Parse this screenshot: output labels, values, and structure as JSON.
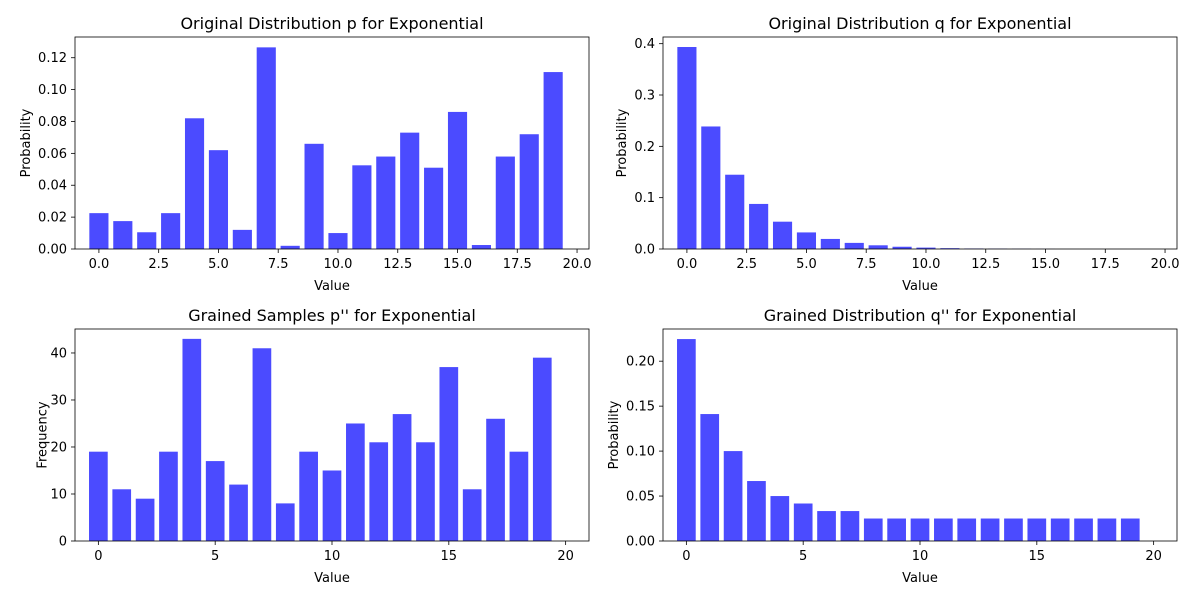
{
  "chart_data": [
    {
      "type": "bar",
      "title": "Original Distribution p for Exponential",
      "xlabel": "Value",
      "ylabel": "Probability",
      "xlim": [
        -1.0,
        20.5
      ],
      "ylim": [
        0,
        0.133
      ],
      "xticks": [
        0.0,
        2.5,
        5.0,
        7.5,
        10.0,
        12.5,
        15.0,
        17.5,
        20.0
      ],
      "xtick_labels": [
        "0.0",
        "2.5",
        "5.0",
        "7.5",
        "10.0",
        "12.5",
        "15.0",
        "17.5",
        "20.0"
      ],
      "yticks": [
        0,
        0.02,
        0.04,
        0.06,
        0.08,
        0.1,
        0.12
      ],
      "ytick_labels": [
        "0.00",
        "0.02",
        "0.04",
        "0.06",
        "0.08",
        "0.10",
        "0.12"
      ],
      "grid": false,
      "bar_color": "#4b4bff",
      "x": [
        0,
        1,
        2,
        3,
        4,
        5,
        6,
        7,
        8,
        9,
        10,
        11,
        12,
        13,
        14,
        15,
        16,
        17,
        18,
        19
      ],
      "values": [
        0.0225,
        0.0175,
        0.0105,
        0.0225,
        0.082,
        0.062,
        0.012,
        0.1265,
        0.002,
        0.066,
        0.01,
        0.0525,
        0.058,
        0.073,
        0.051,
        0.086,
        0.0025,
        0.058,
        0.072,
        0.111
      ]
    },
    {
      "type": "bar",
      "title": "Original Distribution q for Exponential",
      "xlabel": "Value",
      "ylabel": "Probability",
      "xlim": [
        -1.0,
        20.5
      ],
      "ylim": [
        0,
        0.413
      ],
      "xticks": [
        0.0,
        2.5,
        5.0,
        7.5,
        10.0,
        12.5,
        15.0,
        17.5,
        20.0
      ],
      "xtick_labels": [
        "0.0",
        "2.5",
        "5.0",
        "7.5",
        "10.0",
        "12.5",
        "15.0",
        "17.5",
        "20.0"
      ],
      "yticks": [
        0,
        0.1,
        0.2,
        0.3,
        0.4
      ],
      "ytick_labels": [
        "0.0",
        "0.1",
        "0.2",
        "0.3",
        "0.4"
      ],
      "grid": false,
      "bar_color": "#4b4bff",
      "x": [
        0,
        1,
        2,
        3,
        4,
        5,
        6,
        7,
        8,
        9,
        10,
        11,
        12,
        13,
        14,
        15,
        16,
        17,
        18,
        19
      ],
      "values": [
        0.3935,
        0.2387,
        0.1447,
        0.0878,
        0.0532,
        0.0323,
        0.0196,
        0.0119,
        0.0072,
        0.0044,
        0.0027,
        0.0016,
        0.001,
        0.0006,
        0.0004,
        0.0002,
        0.0001,
        0.0001,
        5e-05,
        3e-05
      ]
    },
    {
      "type": "bar",
      "title": "Grained Samples p'' for Exponential",
      "xlabel": "Value",
      "ylabel": "Frequency",
      "xlim": [
        -1.0,
        21.0
      ],
      "ylim": [
        0,
        45.1
      ],
      "xticks": [
        0,
        5,
        10,
        15,
        20
      ],
      "xtick_labels": [
        "0",
        "5",
        "10",
        "15",
        "20"
      ],
      "yticks": [
        0,
        10,
        20,
        30,
        40
      ],
      "ytick_labels": [
        "0",
        "10",
        "20",
        "30",
        "40"
      ],
      "grid": false,
      "bar_color": "#4b4bff",
      "x": [
        0,
        1,
        2,
        3,
        4,
        5,
        6,
        7,
        8,
        9,
        10,
        11,
        12,
        13,
        14,
        15,
        16,
        17,
        18,
        19,
        20
      ],
      "values": [
        19,
        11,
        9,
        19,
        43,
        17,
        12,
        41,
        8,
        19,
        15,
        25,
        21,
        27,
        21,
        37,
        11,
        26,
        19,
        39,
        0
      ]
    },
    {
      "type": "bar",
      "title": "Grained Distribution q'' for Exponential",
      "xlabel": "Value",
      "ylabel": "Probability",
      "xlim": [
        -1.0,
        21.0
      ],
      "ylim": [
        0,
        0.2358
      ],
      "xticks": [
        0,
        5,
        10,
        15,
        20
      ],
      "xtick_labels": [
        "0",
        "5",
        "10",
        "15",
        "20"
      ],
      "yticks": [
        0,
        0.05,
        0.1,
        0.15,
        0.2
      ],
      "ytick_labels": [
        "0.00",
        "0.05",
        "0.10",
        "0.15",
        "0.20"
      ],
      "grid": false,
      "bar_color": "#4b4bff",
      "x": [
        0,
        1,
        2,
        3,
        4,
        5,
        6,
        7,
        8,
        9,
        10,
        11,
        12,
        13,
        14,
        15,
        16,
        17,
        18,
        19,
        20
      ],
      "values": [
        0.2246,
        0.1412,
        0.1,
        0.0667,
        0.05,
        0.0417,
        0.0333,
        0.0333,
        0.025,
        0.025,
        0.025,
        0.025,
        0.025,
        0.025,
        0.025,
        0.025,
        0.025,
        0.025,
        0.025,
        0.025,
        0
      ]
    }
  ]
}
